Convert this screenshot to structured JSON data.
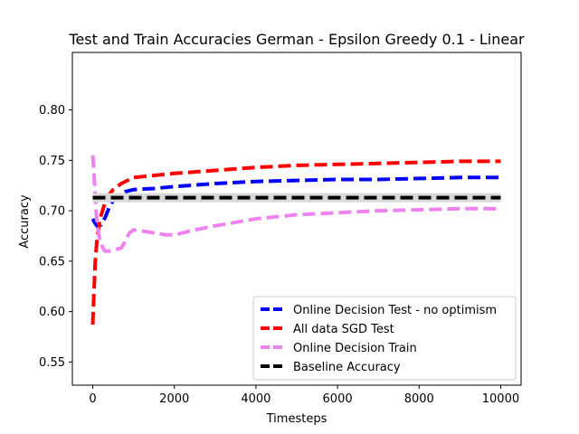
{
  "chart_data": {
    "type": "line",
    "title": "Test and Train Accuracies German - Epsilon Greedy 0.1 - Linear",
    "xlabel": "Timesteps",
    "ylabel": "Accuracy",
    "xlim": [
      -500,
      10500
    ],
    "ylim": [
      0.527,
      0.857
    ],
    "xticks": [
      0,
      2000,
      4000,
      6000,
      8000,
      10000
    ],
    "xtick_labels": [
      "0",
      "2000",
      "4000",
      "6000",
      "8000",
      "10000"
    ],
    "yticks": [
      0.55,
      0.6,
      0.65,
      0.7,
      0.75,
      0.8
    ],
    "ytick_labels": [
      "0.55",
      "0.60",
      "0.65",
      "0.70",
      "0.75",
      "0.80"
    ],
    "grid": false,
    "legend_position": "lower-right",
    "series": [
      {
        "name": "Online Decision Test - no optimism",
        "color": "#0000ff",
        "x": [
          0,
          50,
          100,
          200,
          300,
          400,
          500,
          600,
          800,
          1000,
          1500,
          2000,
          3000,
          4000,
          5000,
          6000,
          7000,
          8000,
          9000,
          10000
        ],
        "y": [
          0.692,
          0.688,
          0.685,
          0.686,
          0.693,
          0.703,
          0.71,
          0.715,
          0.719,
          0.721,
          0.722,
          0.724,
          0.727,
          0.729,
          0.73,
          0.731,
          0.731,
          0.732,
          0.733,
          0.733
        ]
      },
      {
        "name": "All data SGD Test",
        "color": "#ff0000",
        "x": [
          0,
          30,
          60,
          100,
          150,
          200,
          300,
          400,
          500,
          700,
          1000,
          1500,
          2000,
          3000,
          4000,
          5000,
          6000,
          7000,
          8000,
          9000,
          10000
        ],
        "y": [
          0.587,
          0.62,
          0.65,
          0.67,
          0.685,
          0.695,
          0.708,
          0.716,
          0.721,
          0.727,
          0.733,
          0.735,
          0.737,
          0.74,
          0.743,
          0.745,
          0.746,
          0.747,
          0.748,
          0.749,
          0.749
        ]
      },
      {
        "name": "Online Decision Train",
        "color": "#ee82ee",
        "x": [
          0,
          20,
          40,
          60,
          80,
          100,
          150,
          200,
          250,
          300,
          400,
          500,
          600,
          700,
          800,
          900,
          1000,
          1200,
          1500,
          1800,
          2000,
          2500,
          3000,
          4000,
          5000,
          6000,
          7000,
          8000,
          9000,
          10000
        ],
        "y": [
          0.755,
          0.745,
          0.73,
          0.715,
          0.7,
          0.69,
          0.675,
          0.668,
          0.663,
          0.66,
          0.66,
          0.661,
          0.662,
          0.663,
          0.67,
          0.678,
          0.681,
          0.68,
          0.678,
          0.676,
          0.676,
          0.681,
          0.685,
          0.692,
          0.696,
          0.698,
          0.7,
          0.701,
          0.702,
          0.702
        ]
      },
      {
        "name": "Baseline Accuracy",
        "color": "#000000",
        "x": [
          0,
          10000
        ],
        "y": [
          0.713,
          0.713
        ]
      }
    ]
  }
}
